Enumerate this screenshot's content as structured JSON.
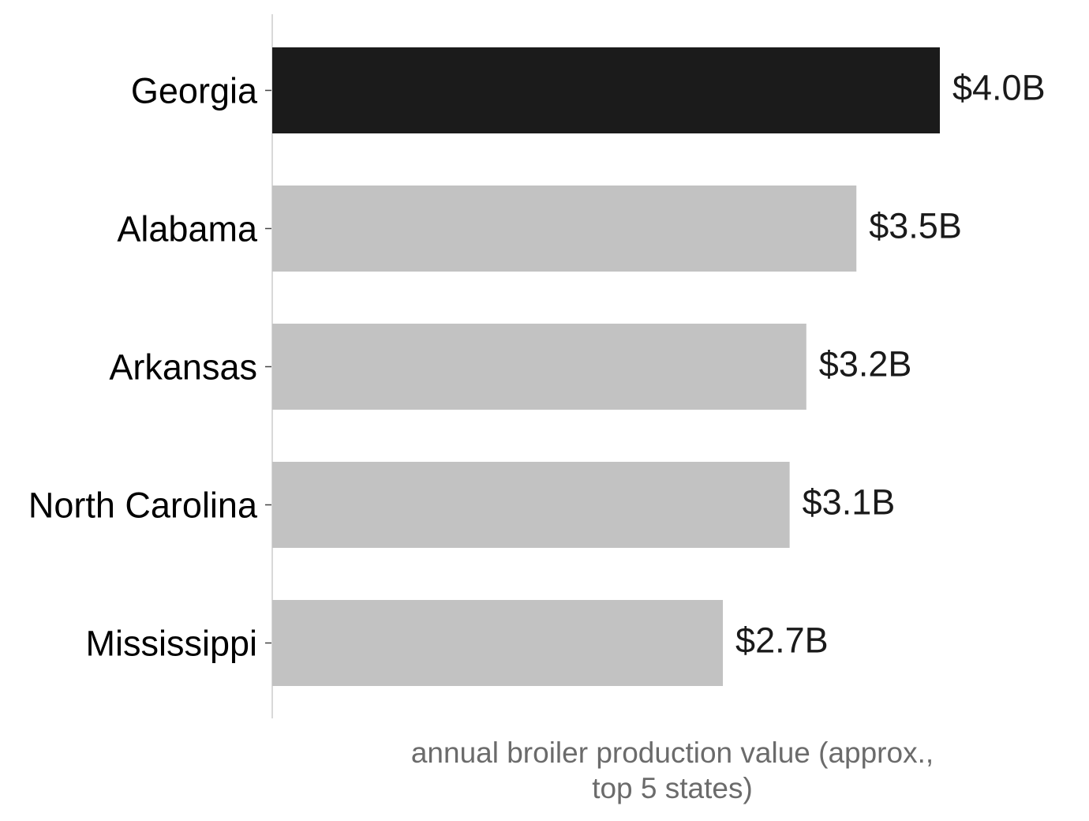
{
  "chart_data": {
    "type": "bar",
    "orientation": "horizontal",
    "categories": [
      "Georgia",
      "Alabama",
      "Arkansas",
      "North Carolina",
      "Mississippi"
    ],
    "values": [
      4.0,
      3.5,
      3.2,
      3.1,
      2.7
    ],
    "value_labels": [
      "$4.0B",
      "$3.5B",
      "$3.2B",
      "$3.1B",
      "$2.7B"
    ],
    "title": "",
    "xlabel_lines": [
      "annual broiler production value (approx.,",
      "top 5 states)"
    ],
    "ylabel": "",
    "xlim": [
      0,
      4.0
    ],
    "grid": false,
    "legend": "none",
    "colors": {
      "highlight": "#1b1b1b",
      "bar": "#c2c2c2",
      "axis": "#d9d9d9",
      "tick": "#444444"
    }
  }
}
